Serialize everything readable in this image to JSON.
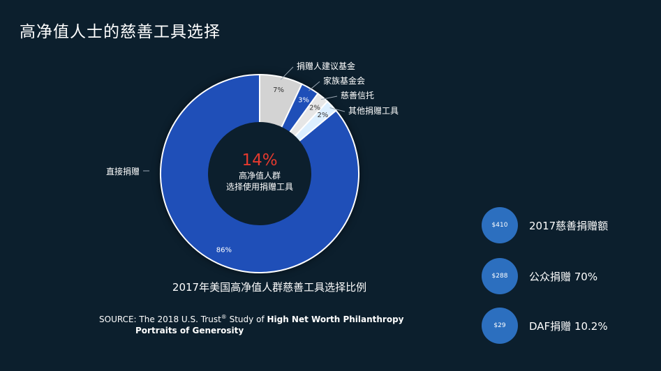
{
  "page": {
    "title": "高净值人士的慈善工具选择"
  },
  "chart_data": {
    "type": "pie",
    "donut": true,
    "categories": [
      "直接捐赠",
      "捐赠人建议基金",
      "家族基金会",
      "慈善信托",
      "其他捐赠工具"
    ],
    "values": [
      86,
      7,
      3,
      2,
      2
    ],
    "value_labels": [
      "86%",
      "7%",
      "3%",
      "2%",
      "2%"
    ],
    "colors": [
      "#1f4fb8",
      "#d3d3d3",
      "#1f4fb8",
      "#e6e6e6",
      "#dcefff"
    ],
    "label_colors": [
      "#ffffff",
      "#333333",
      "#ffffff",
      "#333333",
      "#333333"
    ],
    "center": {
      "value": "14%",
      "value_color": "#e63a2e",
      "line1": "高净值人群",
      "line2": "选择使用捐赠工具"
    },
    "caption": "2017年美国高净值人群慈善工具选择比例"
  },
  "source": {
    "prefix": "SOURCE: The 2018 U.S. Trust",
    "reg": "®",
    "mid": " Study of ",
    "bold1": "High Net Worth Philanthropy",
    "bold2": "Portraits of Generosity"
  },
  "stats": [
    {
      "circle": "$410",
      "label": "2017慈善捐赠额"
    },
    {
      "circle": "$288",
      "label": "公众捐赠 70%"
    },
    {
      "circle": "$29",
      "label": "DAF捐赠 10.2%"
    }
  ]
}
